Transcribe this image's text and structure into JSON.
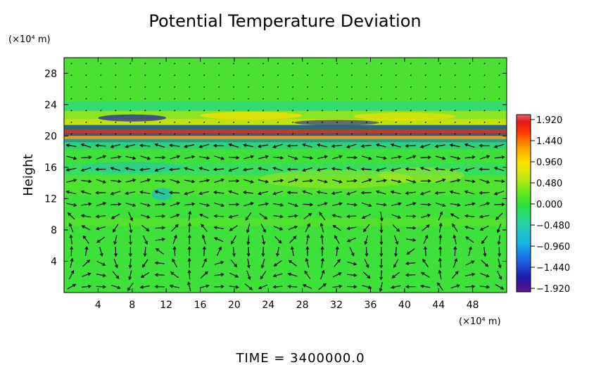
{
  "chart_data": {
    "type": "heatmap",
    "title": "Potential Temperature Deviation",
    "xlabel": "",
    "ylabel": "Height",
    "x_units": "(×10⁴ m)",
    "y_units": "(×10⁴ m)",
    "x_ticks": [
      4,
      8,
      12,
      16,
      20,
      24,
      28,
      32,
      36,
      40,
      44,
      48
    ],
    "y_ticks": [
      4,
      8,
      12,
      16,
      20,
      24,
      28
    ],
    "xlim": [
      0,
      52
    ],
    "ylim": [
      0,
      30
    ],
    "colorbar": {
      "ticks": [
        "1.920",
        "1.440",
        "0.960",
        "0.480",
        "0.000",
        "−0.480",
        "−0.960",
        "−1.440",
        "−1.920"
      ],
      "range": [
        -1.92,
        1.92
      ],
      "colors": [
        "#6a0f8e",
        "#1a1aa8",
        "#1e5fe0",
        "#18b4e8",
        "#27d0a8",
        "#28e040",
        "#5ee81c",
        "#c8e810",
        "#ffe000",
        "#ff9a00",
        "#ff3a00",
        "#e01a1a",
        "#f06070"
      ]
    },
    "field_description": "Background near 0 (green) with strong positive/negative banding near height 19–22 and wave disturbances above; arrows show velocity vectors with convective cells below height 11.",
    "footer": "TIME  =  3400000.0"
  }
}
